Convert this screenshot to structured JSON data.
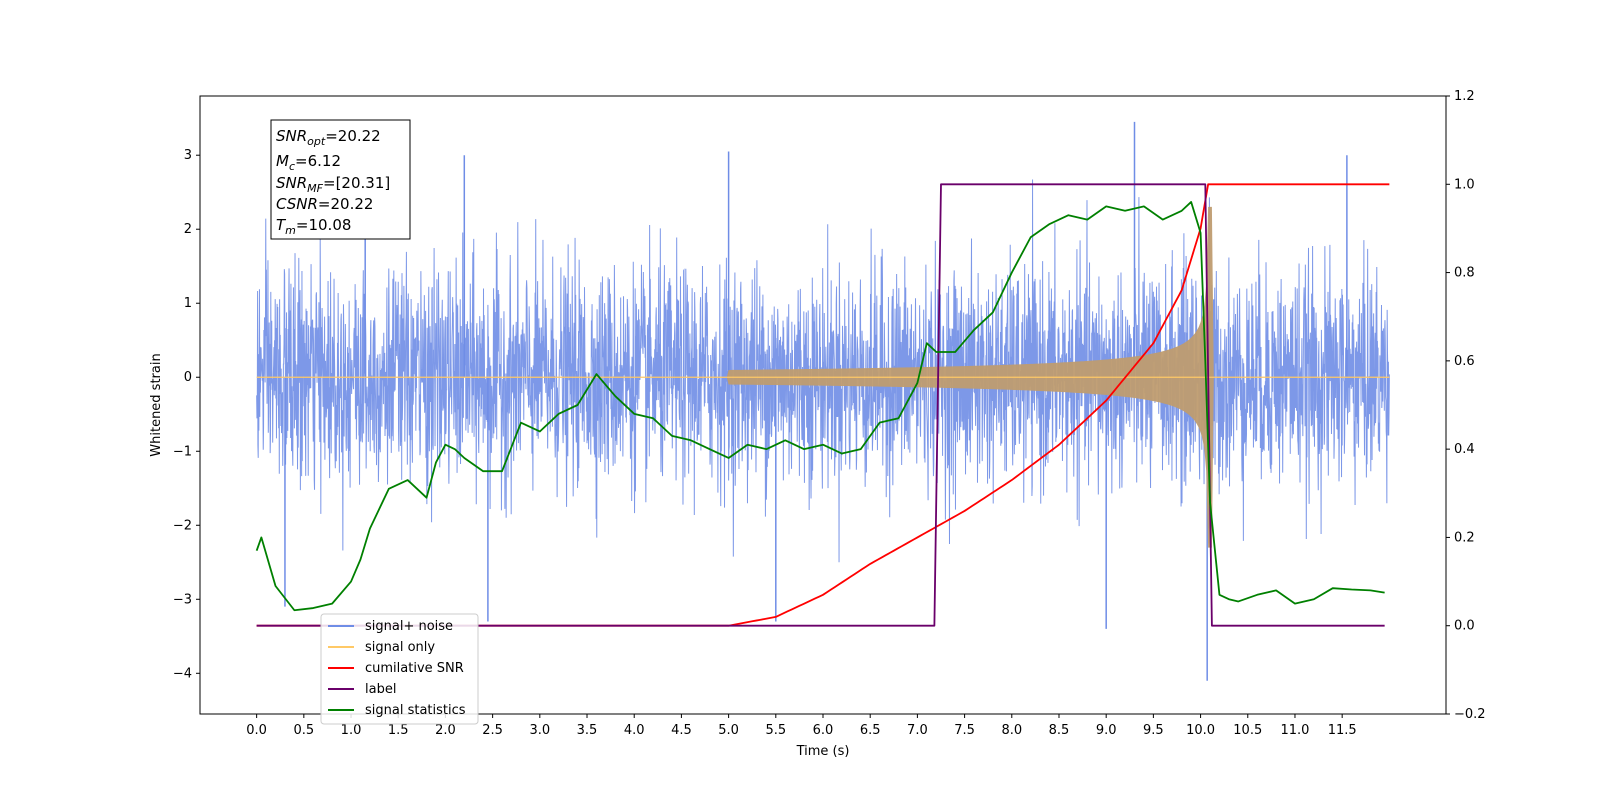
{
  "chart_data": {
    "type": "line",
    "xlabel": "Time (s)",
    "ylabel": "Whitened strain",
    "xlim": [
      -0.6,
      12.6
    ],
    "ylim": [
      -4.55,
      3.8
    ],
    "y2lim": [
      -0.2,
      1.2
    ],
    "x_ticks": [
      0.0,
      0.5,
      1.0,
      1.5,
      2.0,
      2.5,
      3.0,
      3.5,
      4.0,
      4.5,
      5.0,
      5.5,
      6.0,
      6.5,
      7.0,
      7.5,
      8.0,
      8.5,
      9.0,
      9.5,
      10.0,
      10.5,
      11.0,
      11.5
    ],
    "x_tick_labels": [
      "0.0",
      "0.5",
      "1.0",
      "1.5",
      "2.0",
      "2.5",
      "3.0",
      "3.5",
      "4.0",
      "4.5",
      "5.0",
      "5.5",
      "6.0",
      "6.5",
      "7.0",
      "7.5",
      "8.0",
      "8.5",
      "9.0",
      "9.5",
      "10.0",
      "10.5",
      "11.0",
      "11.5"
    ],
    "y_ticks": [
      -4,
      -3,
      -2,
      -1,
      0,
      1,
      2,
      3
    ],
    "y_tick_labels": [
      "−4",
      "−3",
      "−2",
      "−1",
      "0",
      "1",
      "2",
      "3"
    ],
    "y2_ticks": [
      -0.2,
      0.0,
      0.2,
      0.4,
      0.6,
      0.8,
      1.0,
      1.2
    ],
    "y2_tick_labels": [
      "−0.2",
      "0.0",
      "0.2",
      "0.4",
      "0.6",
      "0.8",
      "1.0",
      "1.2"
    ],
    "annotation": {
      "lines": [
        {
          "main": "SNR",
          "sub": "opt",
          "rest": "=20.22"
        },
        {
          "main": "M",
          "sub": "c",
          "rest": "=6.12"
        },
        {
          "main": "SNR",
          "sub": "MF",
          "rest": "=[20.31]"
        },
        {
          "main": "CSNR",
          "sub": "",
          "rest": "=20.22"
        },
        {
          "main": "T",
          "sub": "m",
          "rest": "=10.08"
        }
      ]
    },
    "legend": {
      "placement": "lower-left",
      "entries": [
        {
          "label": "signal+ noise",
          "color": "#6f8de6"
        },
        {
          "label": "signal only",
          "color": "#ffc966"
        },
        {
          "label": "cumilative SNR",
          "color": "#ff0000"
        },
        {
          "label": "label",
          "color": "#6a006a"
        },
        {
          "label": "signal statistics",
          "color": "#008000"
        }
      ]
    },
    "series": [
      {
        "name": "signal+ noise",
        "axis": "left",
        "kind": "noise-envelope",
        "color": "#6f8de6",
        "x_range": [
          0.0,
          12.0
        ],
        "typical_range": [
          -1.9,
          2.3
        ],
        "extremes": [
          {
            "x": 9.3,
            "y": 3.45
          },
          {
            "x": 10.07,
            "y": -4.1
          },
          {
            "x": 9.0,
            "y": -3.4
          },
          {
            "x": 5.5,
            "y": -3.3
          },
          {
            "x": 2.45,
            "y": -3.3
          },
          {
            "x": 0.3,
            "y": -3.1
          },
          {
            "x": 1.15,
            "y": 3.0
          },
          {
            "x": 2.2,
            "y": 3.0
          },
          {
            "x": 5.0,
            "y": 3.05
          },
          {
            "x": 11.55,
            "y": 3.0
          }
        ]
      },
      {
        "name": "signal only",
        "axis": "left",
        "kind": "chirp",
        "color": "#ffc966",
        "start": 5.0,
        "merger": 10.08,
        "amplitude_end": 2.4,
        "x_range": [
          0.0,
          12.0
        ]
      },
      {
        "name": "cumilative SNR",
        "axis": "right",
        "color": "#ff0000",
        "x": [
          0.0,
          5.0,
          5.5,
          6.0,
          6.5,
          7.0,
          7.5,
          8.0,
          8.5,
          9.0,
          9.5,
          9.8,
          10.0,
          10.08,
          10.1,
          12.0
        ],
        "values": [
          0.0,
          0.0,
          0.02,
          0.07,
          0.14,
          0.2,
          0.26,
          0.33,
          0.41,
          0.51,
          0.64,
          0.76,
          0.9,
          1.0,
          1.0,
          1.0
        ]
      },
      {
        "name": "label",
        "axis": "right",
        "color": "#6a006a",
        "x": [
          0.0,
          7.18,
          7.25,
          10.05,
          10.12,
          11.95
        ],
        "values": [
          0.0,
          0.0,
          1.0,
          1.0,
          0.0,
          0.0
        ]
      },
      {
        "name": "signal statistics",
        "axis": "right",
        "color": "#008000",
        "x": [
          0.0,
          0.05,
          0.2,
          0.4,
          0.6,
          0.8,
          1.0,
          1.1,
          1.2,
          1.4,
          1.6,
          1.8,
          1.9,
          2.0,
          2.1,
          2.2,
          2.4,
          2.6,
          2.8,
          3.0,
          3.2,
          3.4,
          3.6,
          3.8,
          4.0,
          4.2,
          4.4,
          4.6,
          4.8,
          5.0,
          5.2,
          5.4,
          5.6,
          5.8,
          6.0,
          6.2,
          6.4,
          6.6,
          6.8,
          7.0,
          7.1,
          7.2,
          7.4,
          7.6,
          7.8,
          8.0,
          8.2,
          8.4,
          8.6,
          8.8,
          9.0,
          9.2,
          9.4,
          9.6,
          9.8,
          9.9,
          10.0,
          10.05,
          10.1,
          10.2,
          10.3,
          10.4,
          10.6,
          10.8,
          11.0,
          11.2,
          11.4,
          11.6,
          11.8,
          11.95
        ],
        "values": [
          0.17,
          0.2,
          0.09,
          0.035,
          0.04,
          0.05,
          0.1,
          0.15,
          0.22,
          0.31,
          0.33,
          0.29,
          0.37,
          0.41,
          0.4,
          0.38,
          0.35,
          0.35,
          0.46,
          0.44,
          0.48,
          0.5,
          0.57,
          0.52,
          0.48,
          0.47,
          0.43,
          0.42,
          0.4,
          0.38,
          0.41,
          0.4,
          0.42,
          0.4,
          0.41,
          0.39,
          0.4,
          0.46,
          0.47,
          0.55,
          0.64,
          0.62,
          0.62,
          0.67,
          0.71,
          0.8,
          0.88,
          0.91,
          0.93,
          0.92,
          0.95,
          0.94,
          0.95,
          0.92,
          0.94,
          0.96,
          0.89,
          0.6,
          0.28,
          0.07,
          0.06,
          0.055,
          0.07,
          0.08,
          0.05,
          0.06,
          0.085,
          0.082,
          0.08,
          0.075
        ]
      }
    ]
  }
}
